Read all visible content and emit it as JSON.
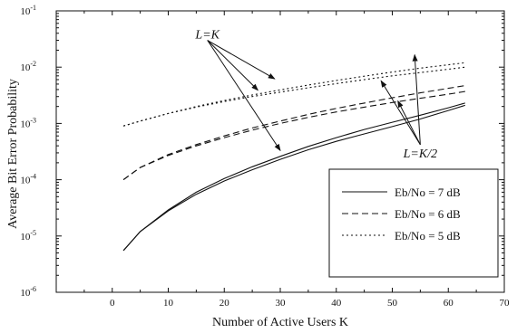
{
  "chart_data": {
    "type": "line",
    "xlabel": "Number of Active Users  K",
    "ylabel": "Average Bit Error Probability",
    "xlim": [
      -10,
      70
    ],
    "ylim": [
      1e-06,
      0.1
    ],
    "y_scale": "log",
    "grid": false,
    "legend_position": "lower-right",
    "x_ticks": [
      0,
      10,
      20,
      30,
      40,
      50,
      60,
      70
    ],
    "y_ticks": [
      {
        "value": 1e-06,
        "mantissa": "10",
        "exp": "-6"
      },
      {
        "value": 1e-05,
        "mantissa": "10",
        "exp": "-5"
      },
      {
        "value": 0.0001,
        "mantissa": "10",
        "exp": "-4"
      },
      {
        "value": 0.001,
        "mantissa": "10",
        "exp": "-3"
      },
      {
        "value": 0.01,
        "mantissa": "10",
        "exp": "-2"
      },
      {
        "value": 0.1,
        "mantissa": "10",
        "exp": "-1"
      }
    ],
    "series": [
      {
        "name": "Eb/No = 7 dB",
        "group": "L=K",
        "dash": "solid",
        "x": [
          2,
          5,
          10,
          15,
          20,
          25,
          30,
          35,
          40,
          45,
          50,
          55,
          60,
          63
        ],
        "y": [
          5.5e-06,
          1.2e-05,
          2.8e-05,
          5.5e-05,
          9.5e-05,
          0.00015,
          0.00023,
          0.00034,
          0.00048,
          0.00065,
          0.00088,
          0.0012,
          0.0017,
          0.0021
        ]
      },
      {
        "name": "",
        "group": "L=K/2",
        "dash": "solid",
        "x": [
          2,
          5,
          10,
          15,
          20,
          25,
          30,
          35,
          40,
          45,
          50,
          55,
          60,
          63
        ],
        "y": [
          5.5e-06,
          1.2e-05,
          2.9e-05,
          6e-05,
          0.000105,
          0.00017,
          0.00026,
          0.00039,
          0.00056,
          0.00078,
          0.00105,
          0.0014,
          0.0019,
          0.0023
        ]
      },
      {
        "name": "Eb/No = 6 dB",
        "group": "L=K",
        "dash": "dashed",
        "x": [
          2,
          5,
          10,
          15,
          20,
          25,
          30,
          35,
          40,
          45,
          50,
          55,
          60,
          63
        ],
        "y": [
          0.0001,
          0.000165,
          0.00027,
          0.0004,
          0.00056,
          0.00076,
          0.001,
          0.00128,
          0.0016,
          0.00195,
          0.00235,
          0.0028,
          0.0033,
          0.0037
        ]
      },
      {
        "name": "",
        "group": "L=K/2",
        "dash": "dashed",
        "x": [
          2,
          5,
          10,
          15,
          20,
          25,
          30,
          35,
          40,
          45,
          50,
          55,
          60,
          63
        ],
        "y": [
          0.0001,
          0.000165,
          0.00028,
          0.00042,
          0.0006,
          0.00083,
          0.0011,
          0.00145,
          0.00185,
          0.0023,
          0.00285,
          0.0035,
          0.0042,
          0.0047
        ]
      },
      {
        "name": "Eb/No = 5 dB",
        "group": "L=K",
        "dash": "dotted",
        "x": [
          2,
          5,
          10,
          15,
          20,
          25,
          30,
          35,
          40,
          45,
          50,
          55,
          60,
          63
        ],
        "y": [
          0.0009,
          0.0011,
          0.0015,
          0.00195,
          0.00245,
          0.003,
          0.0036,
          0.0043,
          0.0051,
          0.006,
          0.007,
          0.008,
          0.0092,
          0.01
        ]
      },
      {
        "name": "",
        "group": "L=K/2",
        "dash": "dotted",
        "x": [
          2,
          5,
          10,
          15,
          20,
          25,
          30,
          35,
          40,
          45,
          50,
          55,
          60,
          63
        ],
        "y": [
          0.0009,
          0.0011,
          0.0015,
          0.002,
          0.00255,
          0.0032,
          0.00395,
          0.0048,
          0.0058,
          0.0069,
          0.0082,
          0.0096,
          0.011,
          0.012
        ]
      }
    ],
    "legend": [
      {
        "label": "Eb/No = 7 dB",
        "dash": "solid"
      },
      {
        "label": "Eb/No = 6 dB",
        "dash": "dashed"
      },
      {
        "label": "Eb/No = 5 dB",
        "dash": "dotted"
      }
    ],
    "annotations": [
      {
        "text": "L=K",
        "anchor_x": 17,
        "anchor_y": 0.03,
        "targets": [
          [
            29,
            0.0062
          ],
          [
            26,
            0.0039
          ],
          [
            30,
            0.00033
          ]
        ]
      },
      {
        "text": "L=K/2",
        "anchor_x": 55,
        "anchor_y": 0.00042,
        "targets": [
          [
            51,
            0.0025
          ],
          [
            54,
            0.0165
          ],
          [
            48,
            0.0057
          ]
        ]
      }
    ]
  }
}
